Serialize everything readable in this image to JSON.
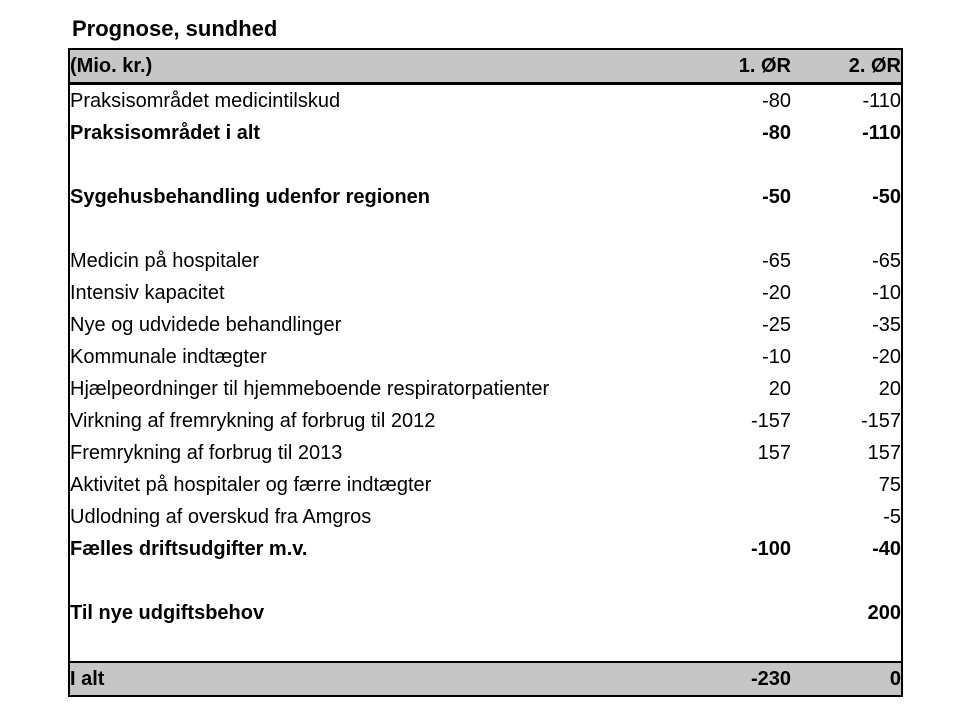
{
  "title": "Prognose, sundhed",
  "colors": {
    "shade_bg": "#c6c6c6",
    "border": "#000000",
    "text": "#000000"
  },
  "table": {
    "header": {
      "label": "(Mio. kr.)",
      "col1": "1. ØR",
      "col2": "2. ØR"
    },
    "rows": [
      {
        "label": "Praksisområdet medicintilskud",
        "col1": "-80",
        "col2": "-110",
        "bold": false
      },
      {
        "label": "Praksisområdet i alt",
        "col1": "-80",
        "col2": "-110",
        "bold": true
      },
      {
        "label": "",
        "col1": "",
        "col2": "",
        "bold": false
      },
      {
        "label": "Sygehusbehandling udenfor regionen",
        "col1": "-50",
        "col2": "-50",
        "bold": true
      },
      {
        "label": "",
        "col1": "",
        "col2": "",
        "bold": false
      },
      {
        "label": "Medicin på hospitaler",
        "col1": "-65",
        "col2": "-65",
        "bold": false
      },
      {
        "label": "Intensiv kapacitet",
        "col1": "-20",
        "col2": "-10",
        "bold": false
      },
      {
        "label": "Nye og udvidede behandlinger",
        "col1": "-25",
        "col2": "-35",
        "bold": false
      },
      {
        "label": "Kommunale indtægter",
        "col1": "-10",
        "col2": "-20",
        "bold": false
      },
      {
        "label": "Hjælpeordninger til hjemmeboende respiratorpatienter",
        "col1": "20",
        "col2": "20",
        "bold": false
      },
      {
        "label": "Virkning af fremrykning af forbrug til 2012",
        "col1": "-157",
        "col2": "-157",
        "bold": false
      },
      {
        "label": "Fremrykning af forbrug til 2013",
        "col1": "157",
        "col2": "157",
        "bold": false
      },
      {
        "label": "Aktivitet på hospitaler og færre indtægter",
        "col1": "",
        "col2": "75",
        "bold": false
      },
      {
        "label": "Udlodning af overskud fra Amgros",
        "col1": "",
        "col2": "-5",
        "bold": false
      },
      {
        "label": "Fælles driftsudgifter m.v.",
        "col1": "-100",
        "col2": "-40",
        "bold": true
      },
      {
        "label": "",
        "col1": "",
        "col2": "",
        "bold": false
      },
      {
        "label": "Til nye udgiftsbehov",
        "col1": "",
        "col2": "200",
        "bold": true
      },
      {
        "label": "",
        "col1": "",
        "col2": "",
        "bold": false
      }
    ],
    "footer": {
      "label": "I alt",
      "col1": "-230",
      "col2": "0"
    }
  }
}
